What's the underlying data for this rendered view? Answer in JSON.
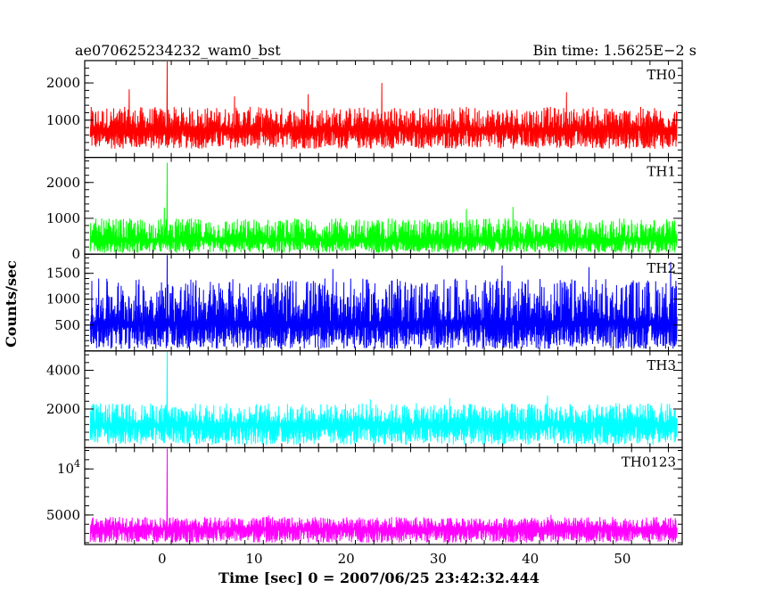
{
  "chart_data": {
    "type": "line",
    "title_left": "ae070625234232_wam0_bst",
    "title_right": "Bin time: 1.5625E−2 s",
    "xlabel": "Time [sec] 0 = 2007/06/25 23:42:32.444",
    "ylabel": "Counts/sec",
    "xlim": [
      -8.4,
      56.5
    ],
    "x_ticks": [
      0,
      10,
      20,
      30,
      40,
      50
    ],
    "x_tick_labels": [
      "0",
      "10",
      "20",
      "30",
      "40",
      "50"
    ],
    "data_x_range": [
      -7.8,
      55.9
    ],
    "panels": [
      {
        "name": "TH0",
        "color": "#ff0000",
        "ylim": [
          0,
          2600
        ],
        "y_ticks": [
          1000,
          2000
        ],
        "y_tick_labels": [
          "1000",
          "2000"
        ],
        "baseline": 780,
        "noise_low": 230,
        "noise_high": 1360,
        "spikes": [
          {
            "x": 0.5,
            "value": 2650
          },
          {
            "x": -3.6,
            "value": 1830
          },
          {
            "x": 23.8,
            "value": 2000
          },
          {
            "x": 7.8,
            "value": 1640
          },
          {
            "x": 15.8,
            "value": 1700
          },
          {
            "x": 43.9,
            "value": 1750
          }
        ]
      },
      {
        "name": "TH1",
        "color": "#00ff00",
        "ylim": [
          0,
          2700
        ],
        "y_ticks": [
          0,
          1000,
          2000
        ],
        "y_tick_labels": [
          "0",
          "1000",
          "2000"
        ],
        "baseline": 420,
        "noise_low": 40,
        "noise_high": 1000,
        "spikes": [
          {
            "x": 0.5,
            "value": 2550
          },
          {
            "x": 0.2,
            "value": 1300
          },
          {
            "x": 38.1,
            "value": 1320
          },
          {
            "x": 33.0,
            "value": 1260
          }
        ]
      },
      {
        "name": "TH2",
        "color": "#0000ff",
        "ylim": [
          0,
          1870
        ],
        "y_ticks": [
          500,
          1000,
          1500
        ],
        "y_tick_labels": [
          "500",
          "1000",
          "1500"
        ],
        "baseline": 560,
        "noise_low": 40,
        "noise_high": 1400,
        "spikes": [
          {
            "x": 0.5,
            "value": 1880
          },
          {
            "x": 55.2,
            "value": 1720
          },
          {
            "x": 36.9,
            "value": 1650
          },
          {
            "x": 18.5,
            "value": 1580
          },
          {
            "x": 46.3,
            "value": 1620
          }
        ]
      },
      {
        "name": "TH3",
        "color": "#00ffff",
        "ylim": [
          0,
          5000
        ],
        "y_ticks": [
          2000,
          4000
        ],
        "y_tick_labels": [
          "2000",
          "4000"
        ],
        "baseline": 1250,
        "noise_low": 150,
        "noise_high": 2300,
        "spikes": [
          {
            "x": 0.5,
            "value": 5100
          },
          {
            "x": 41.8,
            "value": 2700
          },
          {
            "x": 31.2,
            "value": 2550
          },
          {
            "x": 22.6,
            "value": 2500
          }
        ]
      },
      {
        "name": "TH0123",
        "color": "#ff00ff",
        "ylim": [
          1800,
          12300
        ],
        "y_ticks": [
          5000,
          10000
        ],
        "y_tick_labels": [
          "5000",
          "10^4"
        ],
        "baseline": 3600,
        "noise_low": 2000,
        "noise_high": 4800,
        "spikes": [
          {
            "x": 0.5,
            "value": 12400
          },
          {
            "x": 42.2,
            "value": 5000
          },
          {
            "x": 11.5,
            "value": 4950
          }
        ]
      }
    ],
    "grid": false
  }
}
